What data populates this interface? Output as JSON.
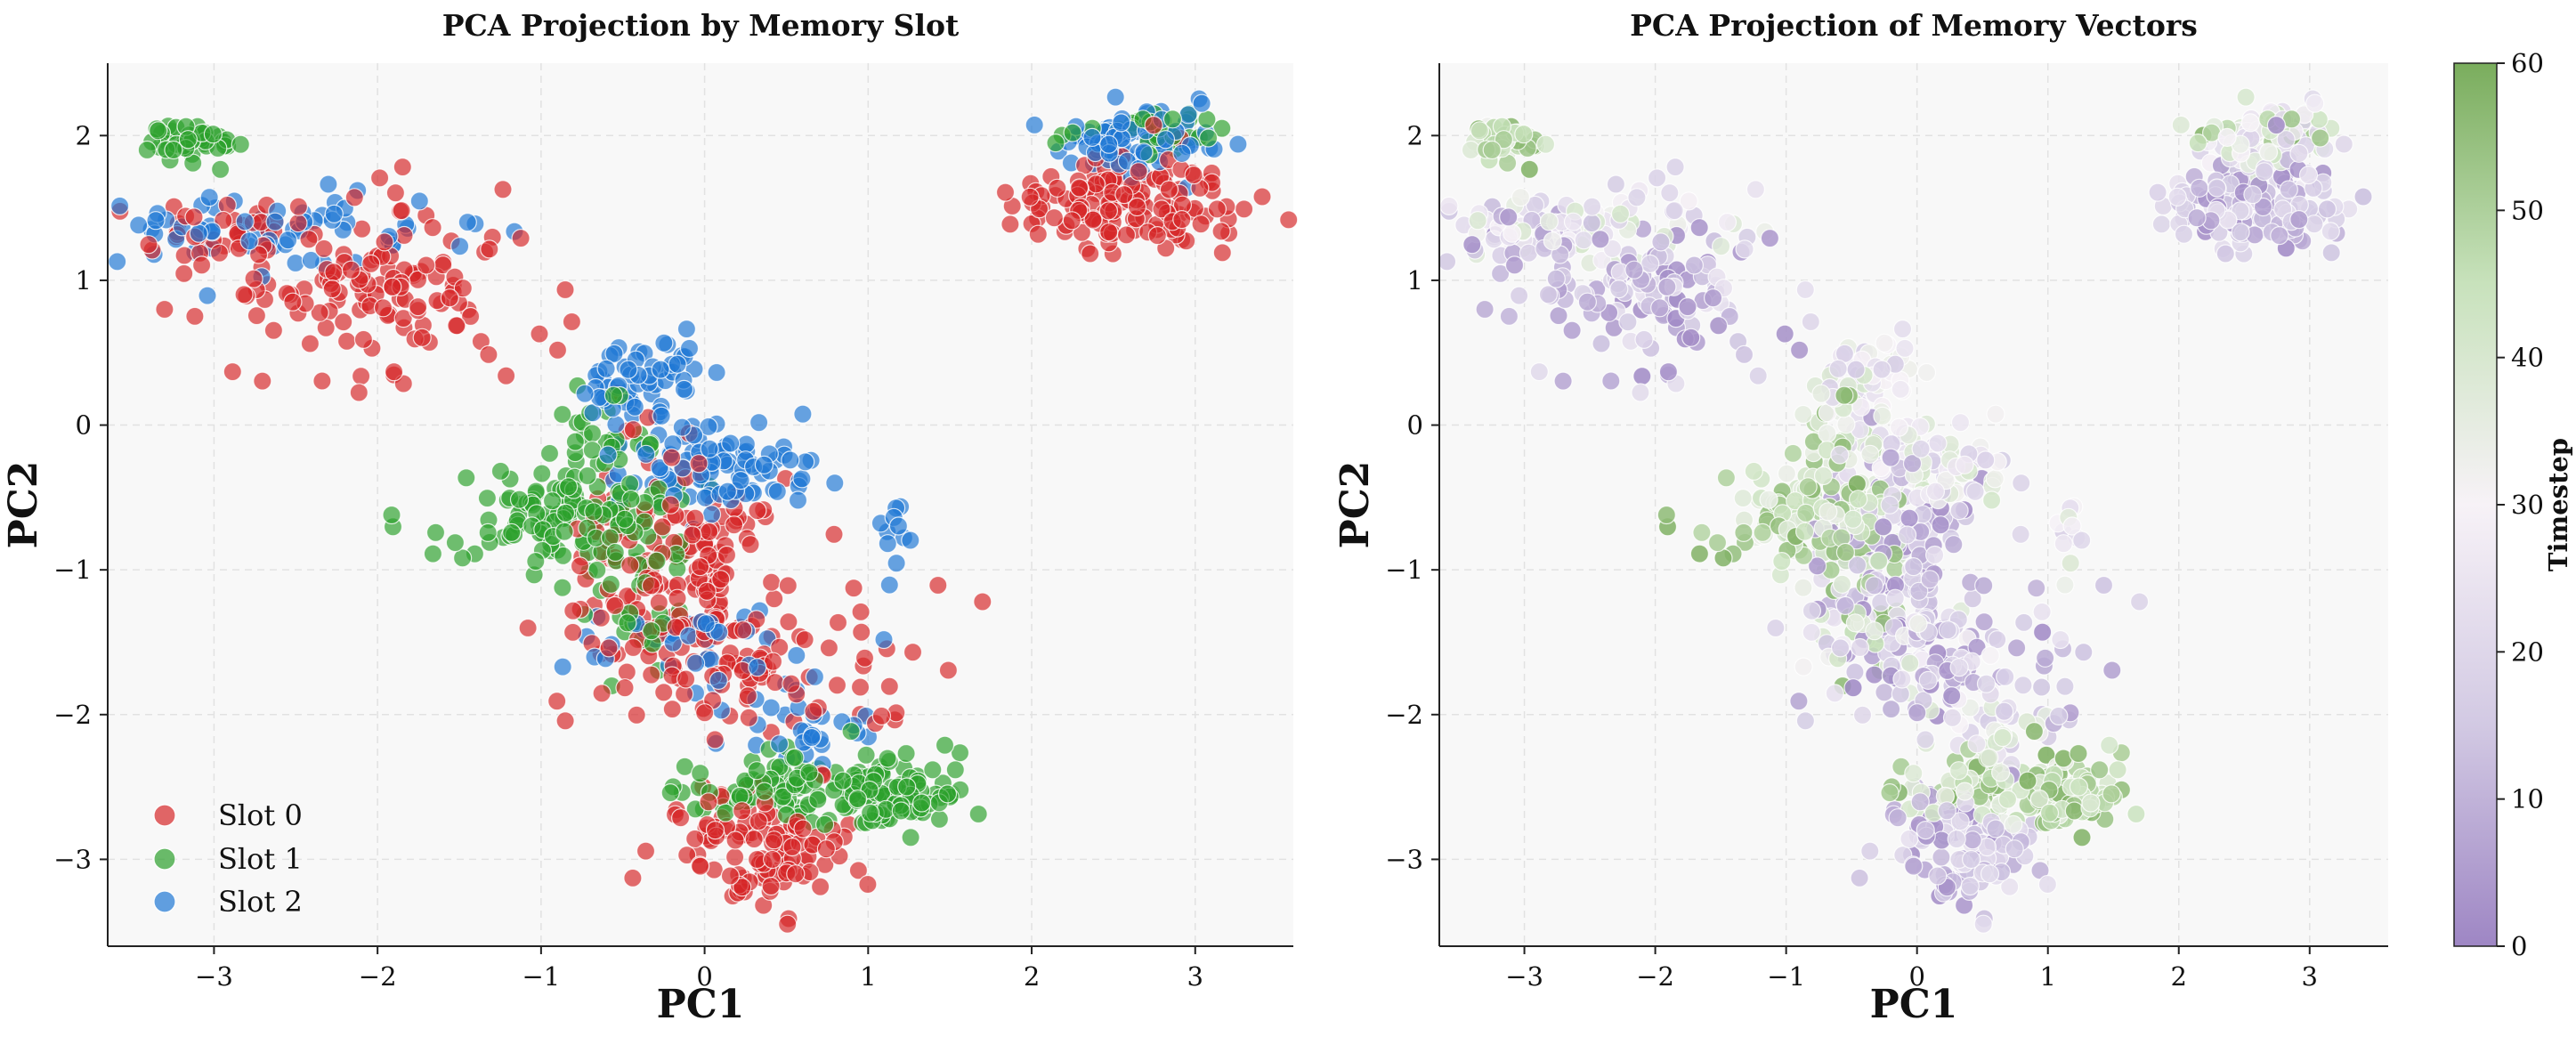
{
  "chart_data": [
    {
      "type": "scatter",
      "title": "PCA Projection by Memory Slot",
      "xlabel": "PC1",
      "ylabel": "PC2",
      "xlim": [
        -3.65,
        3.6
      ],
      "ylim": [
        -3.6,
        2.5
      ],
      "xticks": [
        -3,
        -2,
        -1,
        0,
        1,
        2,
        3
      ],
      "yticks": [
        -3,
        -2,
        -1,
        0,
        1,
        2
      ],
      "grid": true,
      "legend_position": "bottom-left",
      "series": [
        {
          "name": "Slot 0",
          "color": "#d62728",
          "clusters": [
            {
              "center": [
                2.6,
                1.55
              ],
              "spread": [
                0.35,
                0.18
              ],
              "count": 140
            },
            {
              "center": [
                -2.0,
                1.0
              ],
              "spread": [
                0.45,
                0.3
              ],
              "count": 140
            },
            {
              "center": [
                -3.0,
                1.3
              ],
              "spread": [
                0.2,
                0.12
              ],
              "count": 30
            },
            {
              "center": [
                -0.2,
                -1.0
              ],
              "spread": [
                0.35,
                0.35
              ],
              "count": 160
            },
            {
              "center": [
                0.3,
                -1.7
              ],
              "spread": [
                0.45,
                0.3
              ],
              "count": 90
            },
            {
              "center": [
                0.3,
                -2.9
              ],
              "spread": [
                0.3,
                0.2
              ],
              "count": 110
            }
          ]
        },
        {
          "name": "Slot 1",
          "color": "#2ca02c",
          "clusters": [
            {
              "center": [
                -3.1,
                1.95
              ],
              "spread": [
                0.15,
                0.07
              ],
              "count": 45
            },
            {
              "center": [
                2.7,
                2.05
              ],
              "spread": [
                0.25,
                0.08
              ],
              "count": 35
            },
            {
              "center": [
                -0.8,
                -0.65
              ],
              "spread": [
                0.4,
                0.18
              ],
              "count": 140
            },
            {
              "center": [
                -0.6,
                -0.05
              ],
              "spread": [
                0.2,
                0.15
              ],
              "count": 30
            },
            {
              "center": [
                0.6,
                -2.5
              ],
              "spread": [
                0.35,
                0.12
              ],
              "count": 100
            },
            {
              "center": [
                1.2,
                -2.55
              ],
              "spread": [
                0.2,
                0.12
              ],
              "count": 70
            },
            {
              "center": [
                -0.4,
                -1.4
              ],
              "spread": [
                0.15,
                0.15
              ],
              "count": 20
            }
          ]
        },
        {
          "name": "Slot 2",
          "color": "#1f77d4",
          "clusters": [
            {
              "center": [
                2.6,
                1.95
              ],
              "spread": [
                0.25,
                0.12
              ],
              "count": 90
            },
            {
              "center": [
                -2.6,
                1.35
              ],
              "spread": [
                0.5,
                0.15
              ],
              "count": 70
            },
            {
              "center": [
                -0.4,
                0.3
              ],
              "spread": [
                0.2,
                0.15
              ],
              "count": 60
            },
            {
              "center": [
                0.05,
                -0.3
              ],
              "spread": [
                0.3,
                0.15
              ],
              "count": 90
            },
            {
              "center": [
                -0.1,
                -1.5
              ],
              "spread": [
                0.3,
                0.15
              ],
              "count": 35
            },
            {
              "center": [
                0.6,
                -2.1
              ],
              "spread": [
                0.25,
                0.2
              ],
              "count": 30
            },
            {
              "center": [
                1.15,
                -0.85
              ],
              "spread": [
                0.06,
                0.3
              ],
              "count": 12
            }
          ]
        }
      ]
    },
    {
      "type": "scatter",
      "title": "PCA Projection of Memory Vectors",
      "xlabel": "PC1",
      "ylabel": "PC2",
      "xlim": [
        -3.65,
        3.6
      ],
      "ylim": [
        -3.6,
        2.5
      ],
      "xticks": [
        -3,
        -2,
        -1,
        0,
        1,
        2,
        3
      ],
      "yticks": [
        -3,
        -2,
        -1,
        0,
        1,
        2
      ],
      "grid": true,
      "colorbar": {
        "label": "Timestep",
        "min": 0,
        "max": 60,
        "ticks": [
          0,
          10,
          20,
          30,
          40,
          50,
          60
        ],
        "colormap": [
          "#9e86c4",
          "#d2c9e3",
          "#f7f2f7",
          "#c8e2bc",
          "#7aad5d"
        ]
      }
    }
  ]
}
